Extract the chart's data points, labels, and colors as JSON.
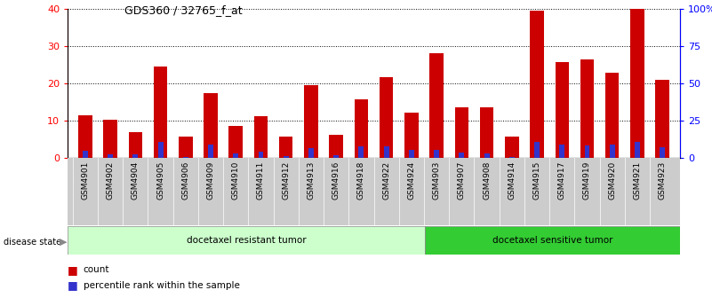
{
  "title": "GDS360 / 32765_f_at",
  "categories": [
    "GSM4901",
    "GSM4902",
    "GSM4904",
    "GSM4905",
    "GSM4906",
    "GSM4909",
    "GSM4910",
    "GSM4911",
    "GSM4912",
    "GSM4913",
    "GSM4916",
    "GSM4918",
    "GSM4922",
    "GSM4924",
    "GSM4903",
    "GSM4907",
    "GSM4908",
    "GSM4914",
    "GSM4915",
    "GSM4917",
    "GSM4919",
    "GSM4920",
    "GSM4921",
    "GSM4923"
  ],
  "counts": [
    11.5,
    10.2,
    7.0,
    24.5,
    5.7,
    17.5,
    8.7,
    11.2,
    5.7,
    19.5,
    6.2,
    15.7,
    21.8,
    12.2,
    28.0,
    13.5,
    13.5,
    5.7,
    39.5,
    25.7,
    26.5,
    22.8,
    40.0,
    21.0
  ],
  "percentile": [
    5.0,
    2.5,
    2.5,
    10.5,
    0.5,
    9.0,
    3.0,
    4.0,
    1.0,
    6.5,
    2.0,
    7.5,
    8.0,
    5.5,
    5.5,
    3.5,
    3.0,
    0.5,
    10.5,
    9.0,
    8.5,
    9.0,
    10.5,
    7.0
  ],
  "group1_label": "docetaxel resistant tumor",
  "group2_label": "docetaxel sensitive tumor",
  "group1_count": 14,
  "group2_count": 10,
  "bar_color": "#CC0000",
  "percentile_color": "#3333CC",
  "group1_bg": "#CCFFCC",
  "group2_bg": "#33CC33",
  "xtick_bg": "#CCCCCC",
  "ylim_left": [
    0,
    40
  ],
  "ylim_right": [
    0,
    100
  ],
  "yticks_left": [
    0,
    10,
    20,
    30,
    40
  ],
  "yticks_right": [
    0,
    25,
    50,
    75,
    100
  ],
  "yticklabels_right": [
    "0",
    "25",
    "50",
    "75",
    "100%"
  ]
}
